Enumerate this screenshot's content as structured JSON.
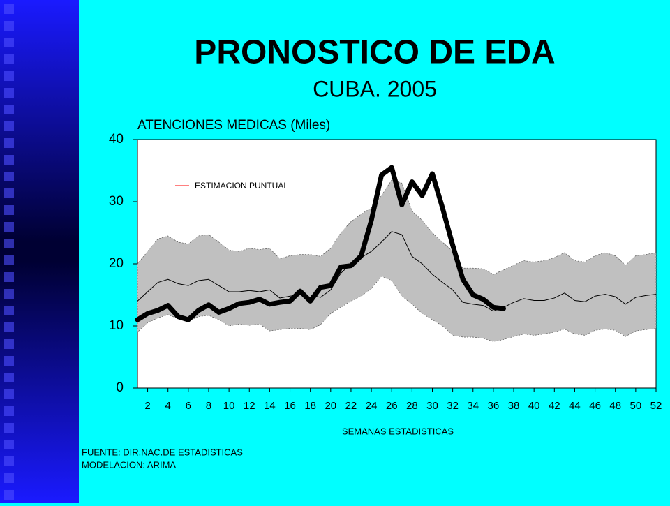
{
  "title": "PRONOSTICO DE EDA",
  "subtitle": "CUBA. 2005",
  "footnotes": [
    "FUENTE: DIR.NAC.DE ESTADISTICAS",
    "MODELACION: ARIMA"
  ],
  "chart_data": {
    "type": "line",
    "y_label": "ATENCIONES MEDICAS (Miles)",
    "x_label": "SEMANAS ESTADISTICAS",
    "x": [
      1,
      2,
      3,
      4,
      5,
      6,
      7,
      8,
      9,
      10,
      11,
      12,
      13,
      14,
      15,
      16,
      17,
      18,
      19,
      20,
      21,
      22,
      23,
      24,
      25,
      26,
      27,
      28,
      29,
      30,
      31,
      32,
      33,
      34,
      35,
      36,
      37,
      38,
      39,
      40,
      41,
      42,
      43,
      44,
      45,
      46,
      47,
      48,
      49,
      50,
      51,
      52
    ],
    "xlim": [
      1,
      52
    ],
    "xticks": [
      2,
      4,
      6,
      8,
      10,
      12,
      14,
      16,
      18,
      20,
      22,
      24,
      26,
      28,
      30,
      32,
      34,
      36,
      38,
      40,
      42,
      44,
      46,
      48,
      50,
      52
    ],
    "ylim": [
      0,
      40
    ],
    "yticks": [
      0,
      10,
      20,
      30,
      40
    ],
    "band": {
      "color": "#c0c0c0",
      "upper": [
        20,
        22,
        24,
        24.5,
        23.5,
        23.2,
        24.5,
        24.7,
        23.5,
        22.2,
        22,
        22.5,
        22.3,
        22.5,
        20.8,
        21.3,
        21.5,
        21.5,
        21.2,
        22.5,
        25,
        26.8,
        28,
        29,
        31,
        33.5,
        33,
        28.5,
        27,
        25,
        23.5,
        22,
        19.3,
        19.3,
        19.2,
        18.3,
        19,
        19.8,
        20.5,
        20.3,
        20.5,
        21,
        21.8,
        20.5,
        20.3,
        21.3,
        21.8,
        21.3,
        19.8,
        21.3,
        21.5,
        21.8
      ],
      "lower": [
        9,
        10.5,
        11.3,
        11.8,
        11.2,
        10.8,
        11.5,
        11.7,
        11,
        10,
        10.3,
        10.1,
        10.3,
        9.2,
        9.4,
        9.6,
        9.6,
        9.4,
        10.2,
        12,
        13,
        14,
        14.8,
        16,
        18,
        17.3,
        14.8,
        13.5,
        12,
        11,
        10,
        8.5,
        8.2,
        8.2,
        8,
        7.5,
        7.8,
        8.3,
        8.7,
        8.5,
        8.7,
        9,
        9.5,
        8.7,
        8.5,
        9.3,
        9.5,
        9.3,
        8.3,
        9.2,
        9.4,
        9.6
      ]
    },
    "series": [
      {
        "name": "ESTIMACION PUNTUAL",
        "color": "#000000",
        "legend_color": "#ff0000",
        "width": 1,
        "values": [
          14,
          15.5,
          17,
          17.5,
          16.8,
          16.5,
          17.3,
          17.5,
          16.5,
          15.5,
          15.5,
          15.7,
          15.5,
          15.8,
          14.5,
          14.8,
          15,
          15,
          14.6,
          15.8,
          18.5,
          20,
          21,
          22,
          23.5,
          25.2,
          24.7,
          21.2,
          20,
          18.3,
          17,
          15.8,
          13.8,
          13.5,
          13.3,
          12.4,
          13,
          13.8,
          14.4,
          14.1,
          14.1,
          14.5,
          15.3,
          14.1,
          13.9,
          14.8,
          15.1,
          14.7,
          13.5,
          14.6,
          14.9,
          15.1
        ]
      },
      {
        "color": "#000000",
        "width": 7,
        "values": [
          11,
          12,
          12.5,
          13.3,
          11.5,
          11,
          12.5,
          13.4,
          12.2,
          12.8,
          13.6,
          13.8,
          14.3,
          13.5,
          13.8,
          14,
          15.6,
          14,
          16.2,
          16.5,
          19.5,
          19.7,
          21.3,
          27,
          34.3,
          35.5,
          29.5,
          33.2,
          31,
          34.5,
          29,
          23,
          17.5,
          15,
          14.3,
          13,
          12.8,
          null,
          null,
          null,
          null,
          null,
          null,
          null,
          null,
          null,
          null,
          null,
          null,
          null,
          null,
          null
        ]
      }
    ]
  }
}
